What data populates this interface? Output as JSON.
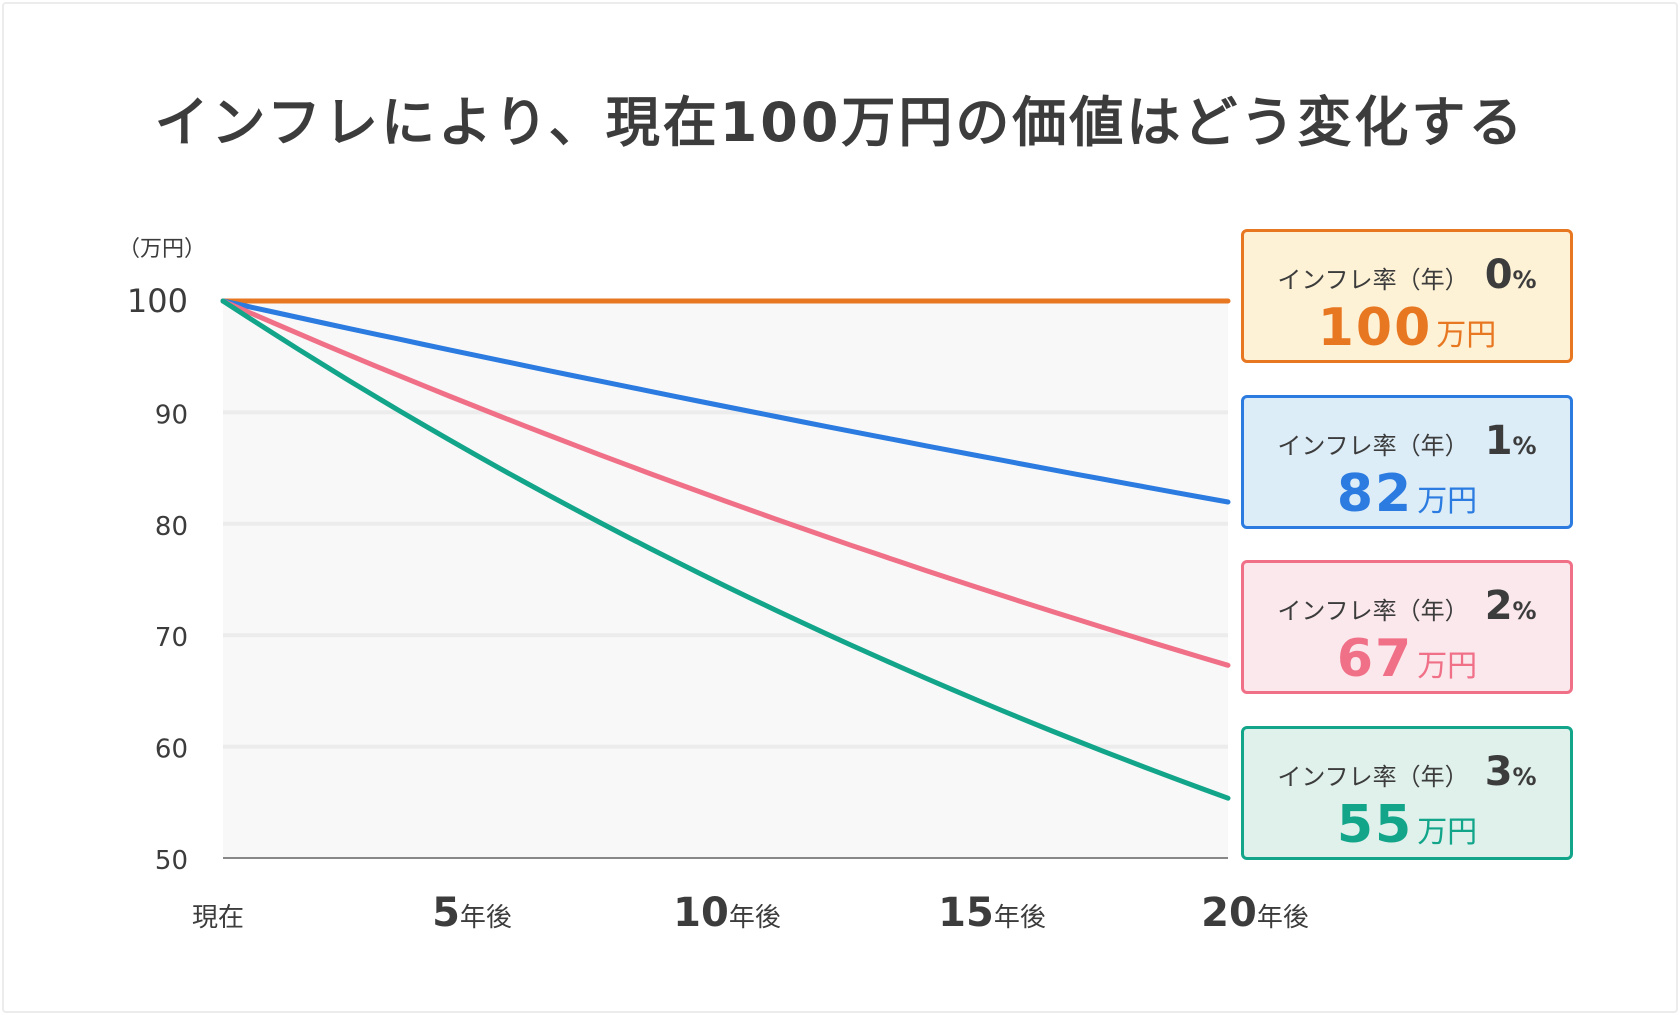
{
  "title": "インフレにより、現在100万円の価値はどう変化する",
  "chart_data": {
    "type": "line",
    "ylabel": "（万円）",
    "ylim": [
      50,
      100
    ],
    "yticks": [
      "100",
      "90",
      "80",
      "70",
      "60",
      "50"
    ],
    "x": [
      0,
      5,
      10,
      15,
      20
    ],
    "xticks": [
      {
        "num": "",
        "suffix": "現在"
      },
      {
        "num": "5",
        "suffix": "年後"
      },
      {
        "num": "10",
        "suffix": "年後"
      },
      {
        "num": "15",
        "suffix": "年後"
      },
      {
        "num": "20",
        "suffix": "年後"
      }
    ],
    "grid": true,
    "series": [
      {
        "name": "インフレ率（年）0%",
        "rate": 0,
        "color": "#e87722",
        "values_start_end": [
          100,
          100
        ]
      },
      {
        "name": "インフレ率（年）1%",
        "rate": 1,
        "color": "#2b7be0",
        "values_start_end": [
          100,
          82
        ]
      },
      {
        "name": "インフレ率（年）2%",
        "rate": 2,
        "color": "#f07088",
        "values_start_end": [
          100,
          67
        ]
      },
      {
        "name": "インフレ率（年）3%",
        "rate": 3,
        "color": "#12a58a",
        "values_start_end": [
          100,
          55
        ]
      }
    ]
  },
  "cards": [
    {
      "label": "インフレ率（年）",
      "rate": "0",
      "pct": "%",
      "value": "100",
      "unit": "万円",
      "color": "#e87722",
      "bg": "#fdf2d6"
    },
    {
      "label": "インフレ率（年）",
      "rate": "1",
      "pct": "%",
      "value": "82",
      "unit": "万円",
      "color": "#2b7be0",
      "bg": "#dcedf8"
    },
    {
      "label": "インフレ率（年）",
      "rate": "2",
      "pct": "%",
      "value": "67",
      "unit": "万円",
      "color": "#f07088",
      "bg": "#fbe8ec"
    },
    {
      "label": "インフレ率（年）",
      "rate": "3",
      "pct": "%",
      "value": "55",
      "unit": "万円",
      "color": "#12a58a",
      "bg": "#e0f1ec"
    }
  ]
}
